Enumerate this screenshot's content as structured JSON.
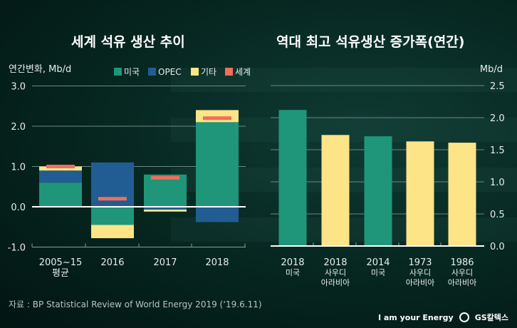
{
  "titles": {
    "left": "세계 석유 생산 추이",
    "right": "역대 최고 석유생산 증가폭(연간)"
  },
  "footer": {
    "source": "자료 : BP Statistical Review of World Energy 2019 (‘19.6.11)",
    "slogan": "I am your Energy",
    "logo": "GS칼텍스"
  },
  "colors": {
    "us": "#1f9679",
    "opec": "#215d93",
    "other": "#fde486",
    "world": "#f26d5b"
  },
  "chart_data": [
    {
      "type": "bar",
      "stacked": true,
      "ylabel": "연간변화, Mb/d",
      "ylim": [
        -1.0,
        3.0
      ],
      "yticks": [
        "3.0",
        "2.0",
        "1.0",
        "0.0",
        "-1.0"
      ],
      "grid": true,
      "legend_position": "top-right",
      "categories": [
        [
          "2005~15",
          "평균"
        ],
        [
          "2016"
        ],
        [
          "2017"
        ],
        [
          "2018"
        ]
      ],
      "series": [
        {
          "name": "미국",
          "color": "#1f9679",
          "values": [
            0.6,
            -0.45,
            0.8,
            2.1
          ]
        },
        {
          "name": "OPEC",
          "color": "#215d93",
          "values": [
            0.3,
            1.1,
            -0.07,
            -0.38
          ]
        },
        {
          "name": "기타",
          "color": "#fde486",
          "values": [
            0.1,
            -0.33,
            -0.05,
            0.3
          ]
        },
        {
          "name": "세계",
          "color": "#f26d5b",
          "marker": "line",
          "values": [
            1.0,
            0.2,
            0.72,
            2.2
          ]
        }
      ]
    },
    {
      "type": "bar",
      "ylabel": "Mb/d",
      "ylim": [
        0,
        2.5
      ],
      "yticks": [
        "2.5",
        "2.0",
        "1.5",
        "1.0",
        "0.5",
        "0.0"
      ],
      "grid": true,
      "categories": [
        [
          "2018",
          "미국"
        ],
        [
          "2018",
          "사우디",
          "아라비아"
        ],
        [
          "2014",
          "미국"
        ],
        [
          "1973",
          "사우디",
          "아라비아"
        ],
        [
          "1986",
          "사우디",
          "아라비아"
        ]
      ],
      "values": [
        2.12,
        1.73,
        1.71,
        1.63,
        1.61
      ],
      "bar_colors": [
        "#1f9679",
        "#fde486",
        "#1f9679",
        "#fde486",
        "#fde486"
      ]
    }
  ]
}
